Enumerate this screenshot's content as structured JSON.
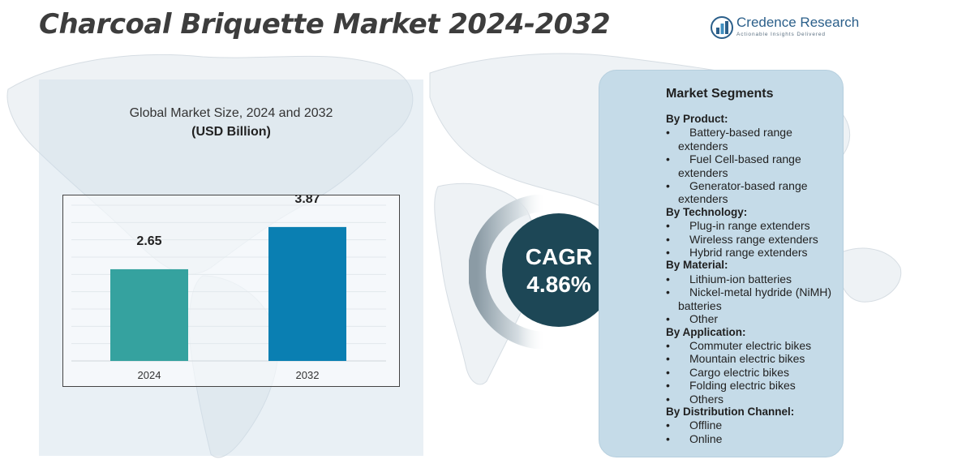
{
  "header": {
    "title": "Charcoal Briquette Market 2024-2032",
    "logo_name": "Credence Research",
    "logo_tagline": "Actionable Insights Delivered"
  },
  "chart": {
    "title": "Global Market Size, 2024 and 2032",
    "unit": "(USD Billion)"
  },
  "chart_data": {
    "type": "bar",
    "categories": [
      "2024",
      "2032"
    ],
    "values": [
      2.65,
      3.87
    ],
    "value_labels": [
      "2.65",
      "3.87"
    ],
    "title": "Global Market Size, 2024 and 2032",
    "ylabel": "(USD Billion)",
    "xlabel": "",
    "ylim": [
      0,
      4.5
    ],
    "grid": true,
    "colors": [
      "#35a29f",
      "#0a7fb2"
    ]
  },
  "cagr": {
    "label": "CAGR",
    "value": "4.86%"
  },
  "segments": {
    "title": "Market Segments",
    "groups": [
      {
        "heading": "By Product:",
        "items": [
          "Battery-based range extenders",
          "Fuel Cell-based range extenders",
          "Generator-based range extenders"
        ]
      },
      {
        "heading": "By Technology:",
        "items": [
          "Plug-in range extenders",
          "Wireless range extenders",
          "Hybrid range extenders"
        ]
      },
      {
        "heading": "By Material:",
        "items": [
          "Lithium-ion batteries",
          "Nickel-metal hydride (NiMH) batteries",
          "Other"
        ]
      },
      {
        "heading": "By Application:",
        "items": [
          "Commuter electric bikes",
          "Mountain electric bikes",
          "Cargo electric bikes",
          "Folding electric bikes",
          "Others"
        ]
      },
      {
        "heading": "By Distribution Channel:",
        "items": [
          "Offline",
          "Online"
        ]
      }
    ]
  },
  "theme": {
    "title_color": "#3d3d3d",
    "cagr_bg": "#1d4756",
    "segment_panel_bg": "#c5dbe8",
    "bar_2024": "#35a29f",
    "bar_2032": "#0a7fb2"
  }
}
